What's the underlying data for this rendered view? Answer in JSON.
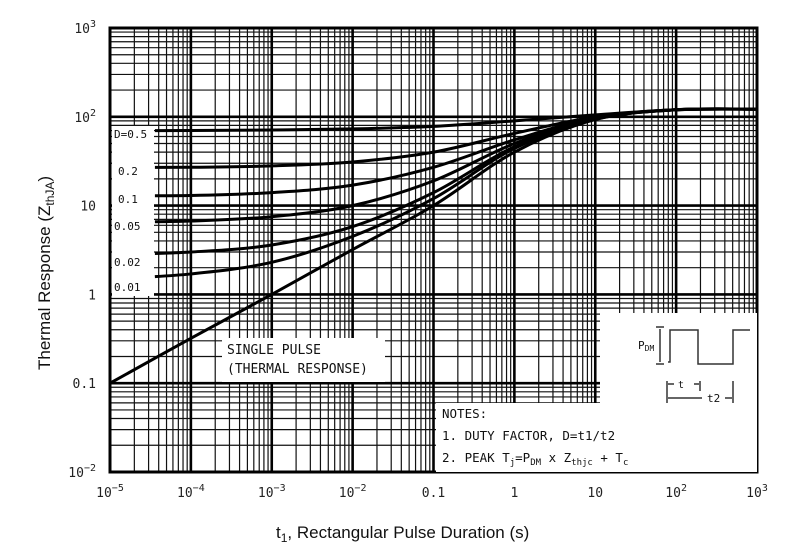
{
  "chart_data": {
    "type": "line",
    "title": "",
    "xlabel": "t1, Rectangular Pulse Duration (s)",
    "ylabel": "Thermal Response (ZthJA)",
    "xscale": "log",
    "yscale": "log",
    "xlim": [
      1e-05,
      1000
    ],
    "ylim": [
      0.01,
      1000
    ],
    "grid": true,
    "x_ticks": [
      "10^-5",
      "10^-4",
      "10^-3",
      "10^-2",
      "0.1",
      "1",
      "10",
      "10^2",
      "10^3"
    ],
    "y_ticks": [
      "10^-2",
      "0.1",
      "1",
      "10",
      "10^2",
      "10^3"
    ],
    "x": [
      1e-05,
      0.0001,
      0.001,
      0.01,
      0.1,
      1,
      10,
      100,
      1000
    ],
    "series": [
      {
        "name": "D=0.5",
        "values": [
          70,
          70,
          71,
          73,
          78,
          90,
          105,
          120,
          122
        ]
      },
      {
        "name": "0.2",
        "values": [
          27,
          27,
          28,
          31,
          40,
          65,
          100,
          120,
          122
        ]
      },
      {
        "name": "0.1",
        "values": [
          13,
          13,
          14,
          17,
          27,
          55,
          98,
          120,
          122
        ]
      },
      {
        "name": "0.05",
        "values": [
          6.5,
          6.7,
          7.5,
          10,
          19,
          50,
          96,
          120,
          122
        ]
      },
      {
        "name": "0.02",
        "values": [
          2.8,
          3.0,
          3.6,
          5.8,
          14,
          46,
          95,
          120,
          122
        ]
      },
      {
        "name": "0.01",
        "values": [
          1.5,
          1.7,
          2.3,
          4.5,
          12,
          44,
          94,
          120,
          122
        ]
      },
      {
        "name": "Single Pulse",
        "values": [
          0.1,
          0.32,
          1.0,
          3.2,
          10,
          40,
          93,
          120,
          122
        ]
      }
    ],
    "annotations": [
      "SINGLE PULSE (THERMAL RESPONSE)",
      "NOTES:",
      "1. DUTY FACTOR, D=t1/t2",
      "2. PEAK Tj=PDM x Zthjc + Tc"
    ]
  },
  "labels": {
    "y_axis_title": "Thermal Response (Z",
    "y_axis_sub": "thJA",
    "y_axis_close": ")",
    "x_axis_title_t": "t",
    "x_axis_title_sub": "1",
    "x_axis_title_rest": ", Rectangular Pulse Duration (s)",
    "single_pulse_1": "SINGLE PULSE",
    "single_pulse_2": "(THERMAL RESPONSE)",
    "notes_title": "NOTES:",
    "note1": "1. DUTY FACTOR, D=t1/t2",
    "note2_a": "2. PEAK T",
    "note2_j": "j",
    "note2_b": "=P",
    "note2_dm": "DM",
    "note2_c": " x Z",
    "note2_thjc": "thjc",
    "note2_d": " + T",
    "note2_cc": "c",
    "pdm_label_p": "P",
    "pdm_label_dm": "DM",
    "t1_label": "t",
    "t2_label": "t2",
    "duty_labels": [
      "D=0.5",
      "0.2",
      "0.1",
      "0.05",
      "0.02",
      "0.01"
    ]
  }
}
